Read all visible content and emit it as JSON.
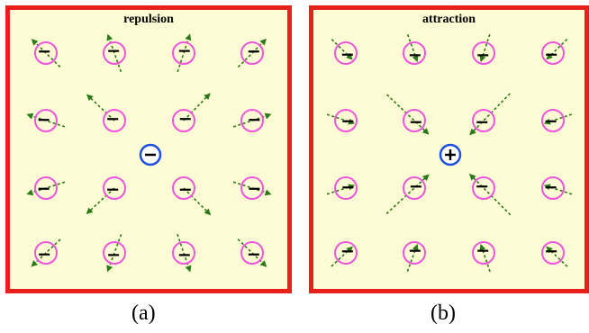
{
  "panels": [
    {
      "id": "a",
      "title": "repulsion",
      "caption": "(a)",
      "center_sign": "−",
      "field_direction": "outward"
    },
    {
      "id": "b",
      "title": "attraction",
      "caption": "(b)",
      "center_sign": "+",
      "field_direction": "inward"
    }
  ],
  "colors": {
    "border": "#e8201c",
    "background": "#fdfcd4",
    "particle_ring": "#ee55dd",
    "central_ring": "#1f4fe0",
    "arrow": "#2a7a1a",
    "sign": "#000000"
  }
}
